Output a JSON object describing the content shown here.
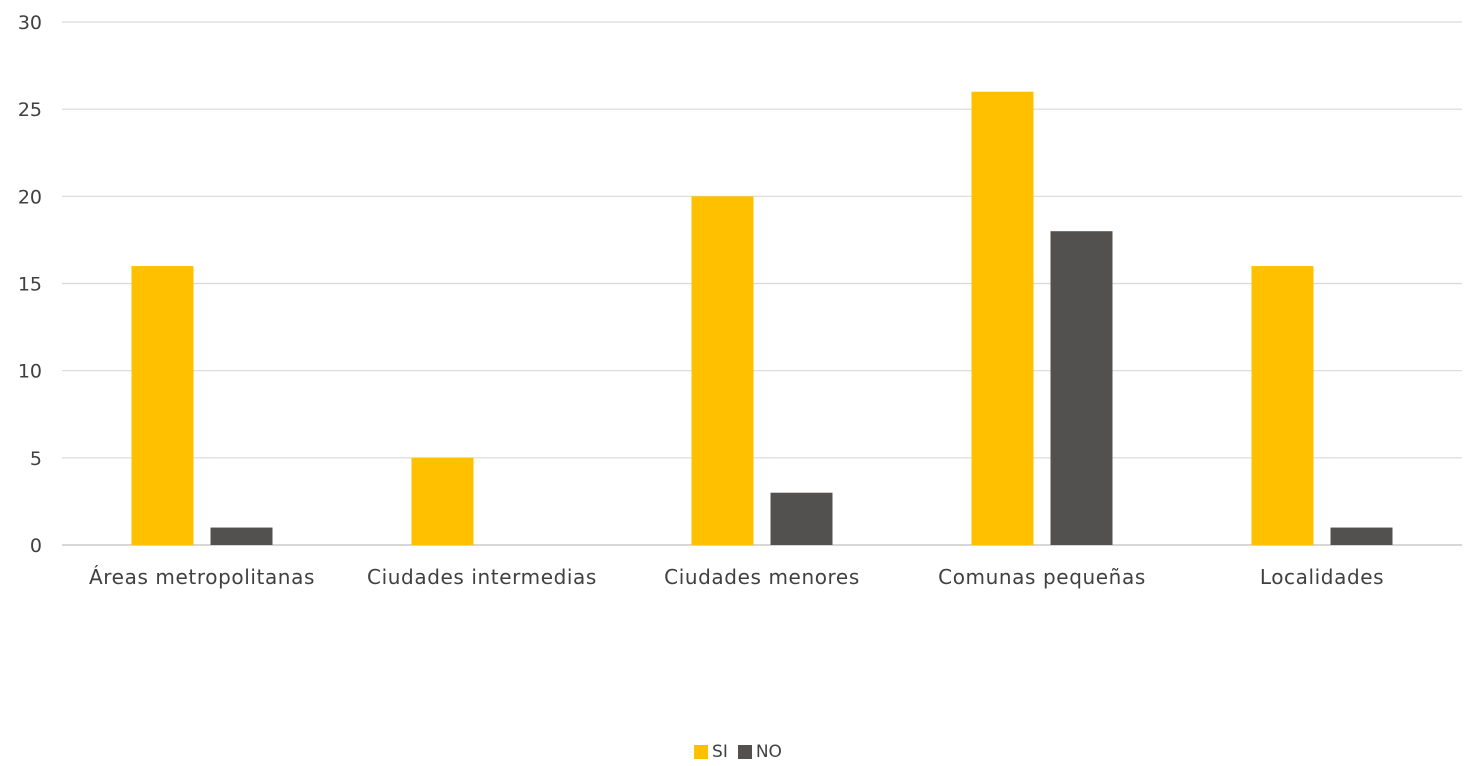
{
  "chart_data": {
    "type": "bar",
    "title": "",
    "xlabel": "",
    "ylabel": "",
    "categories": [
      "Áreas metropolitanas",
      "Ciudades intermedias",
      "Ciudades menores",
      "Comunas pequeñas",
      "Localidades"
    ],
    "series": [
      {
        "name": "SI",
        "color": "#FFC000",
        "values": [
          16,
          5,
          20,
          26,
          16
        ]
      },
      {
        "name": "NO",
        "color": "#53514F",
        "values": [
          1,
          0,
          3,
          18,
          1
        ]
      }
    ],
    "ylim": [
      0,
      30
    ],
    "yticks": [
      "0",
      "5",
      "10",
      "15",
      "20",
      "25",
      "30"
    ],
    "grid": true,
    "legend_position": "bottom"
  }
}
